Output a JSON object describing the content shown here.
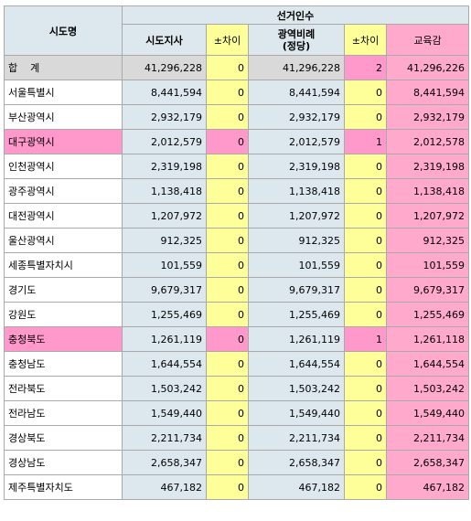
{
  "header": {
    "region": "시도명",
    "group": "선거인수",
    "col_sido": "시도지사",
    "col_diff1": "±차이",
    "col_metro_line1": "광역비례",
    "col_metro_line2": "(정당)",
    "col_diff2": "±차이",
    "col_edu": "교육감"
  },
  "rows": [
    {
      "name": "합    계",
      "sido": "41,296,228",
      "diff1": "0",
      "metro": "41,296,228",
      "diff2": "2",
      "edu": "41,296,226"
    },
    {
      "name": "서울특별시",
      "sido": "8,441,594",
      "diff1": "0",
      "metro": "8,441,594",
      "diff2": "0",
      "edu": "8,441,594"
    },
    {
      "name": "부산광역시",
      "sido": "2,932,179",
      "diff1": "0",
      "metro": "2,932,179",
      "diff2": "0",
      "edu": "2,932,179"
    },
    {
      "name": "대구광역시",
      "sido": "2,012,579",
      "diff1": "0",
      "metro": "2,012,579",
      "diff2": "1",
      "edu": "2,012,578"
    },
    {
      "name": "인천광역시",
      "sido": "2,319,198",
      "diff1": "0",
      "metro": "2,319,198",
      "diff2": "0",
      "edu": "2,319,198"
    },
    {
      "name": "광주광역시",
      "sido": "1,138,418",
      "diff1": "0",
      "metro": "1,138,418",
      "diff2": "0",
      "edu": "1,138,418"
    },
    {
      "name": "대전광역시",
      "sido": "1,207,972",
      "diff1": "0",
      "metro": "1,207,972",
      "diff2": "0",
      "edu": "1,207,972"
    },
    {
      "name": "울산광역시",
      "sido": "912,325",
      "diff1": "0",
      "metro": "912,325",
      "diff2": "0",
      "edu": "912,325"
    },
    {
      "name": "세종특별자치시",
      "sido": "101,559",
      "diff1": "0",
      "metro": "101,559",
      "diff2": "0",
      "edu": "101,559"
    },
    {
      "name": "경기도",
      "sido": "9,679,317",
      "diff1": "0",
      "metro": "9,679,317",
      "diff2": "0",
      "edu": "9,679,317"
    },
    {
      "name": "강원도",
      "sido": "1,255,469",
      "diff1": "0",
      "metro": "1,255,469",
      "diff2": "0",
      "edu": "1,255,469"
    },
    {
      "name": "충청북도",
      "sido": "1,261,119",
      "diff1": "0",
      "metro": "1,261,119",
      "diff2": "1",
      "edu": "1,261,118"
    },
    {
      "name": "충청남도",
      "sido": "1,644,554",
      "diff1": "0",
      "metro": "1,644,554",
      "diff2": "0",
      "edu": "1,644,554"
    },
    {
      "name": "전라북도",
      "sido": "1,503,242",
      "diff1": "0",
      "metro": "1,503,242",
      "diff2": "0",
      "edu": "1,503,242"
    },
    {
      "name": "전라남도",
      "sido": "1,549,440",
      "diff1": "0",
      "metro": "1,549,440",
      "diff2": "0",
      "edu": "1,549,440"
    },
    {
      "name": "경상북도",
      "sido": "2,211,734",
      "diff1": "0",
      "metro": "2,211,734",
      "diff2": "0",
      "edu": "2,211,734"
    },
    {
      "name": "경상남도",
      "sido": "2,658,347",
      "diff1": "0",
      "metro": "2,658,347",
      "diff2": "0",
      "edu": "2,658,347"
    },
    {
      "name": "제주특별자치도",
      "sido": "467,182",
      "diff1": "0",
      "metro": "467,182",
      "diff2": "0",
      "edu": "467,182"
    }
  ]
}
